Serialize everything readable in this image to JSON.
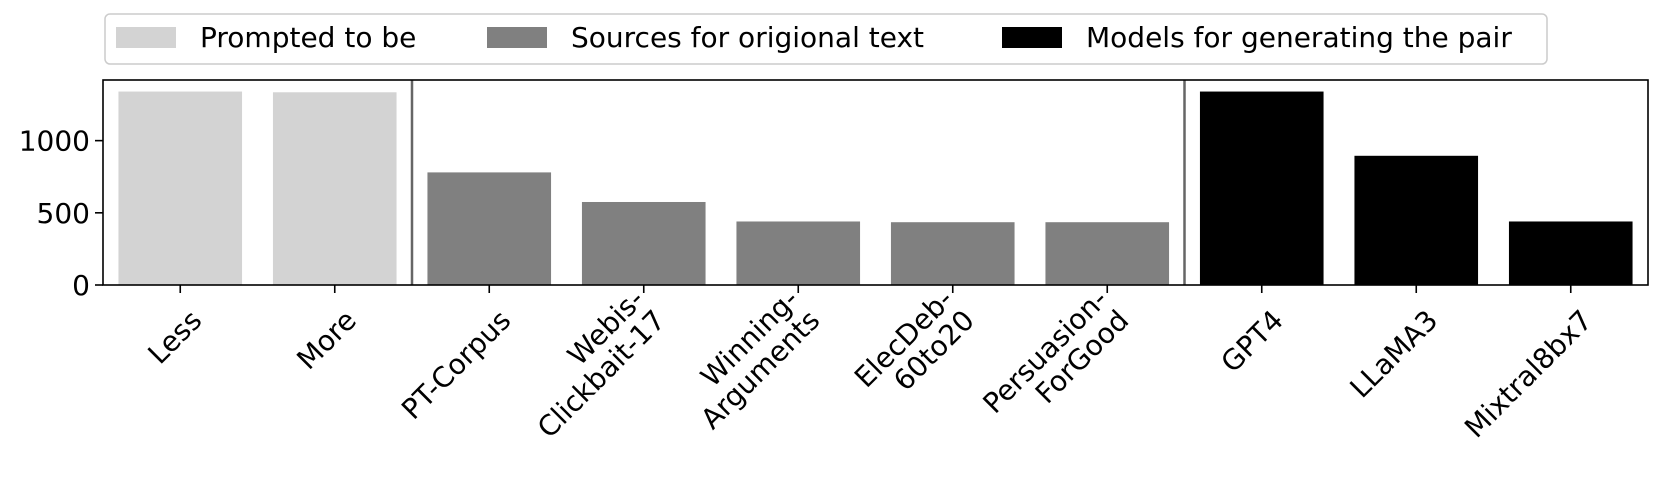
{
  "chart_data": {
    "type": "bar",
    "categories": [
      [
        "Less"
      ],
      [
        "More"
      ],
      [
        "PT-Corpus"
      ],
      [
        "Webis-",
        "Clickbait-17"
      ],
      [
        "Winning-",
        "Arguments"
      ],
      [
        "ElecDeb-",
        "60to20"
      ],
      [
        "Persuasion-",
        "ForGood"
      ],
      [
        "GPT4"
      ],
      [
        "LLaMA3"
      ],
      [
        "Mixtral8bx7"
      ]
    ],
    "values": [
      1340,
      1335,
      780,
      575,
      440,
      435,
      435,
      1340,
      895,
      440
    ],
    "groups": [
      0,
      0,
      1,
      1,
      1,
      1,
      1,
      2,
      2,
      2
    ],
    "legend": [
      {
        "label": "Prompted to be",
        "color": "#d3d3d3"
      },
      {
        "label": "Sources for origional text",
        "color": "#808080"
      },
      {
        "label": "Models for generating the pair",
        "color": "#000000"
      }
    ],
    "legend_placement": "top-center",
    "title": "",
    "xlabel": "",
    "ylabel": "",
    "ylim": [
      0,
      1420
    ],
    "yticks": [
      0,
      500,
      1000
    ],
    "group_dividers": true,
    "grid": false
  }
}
